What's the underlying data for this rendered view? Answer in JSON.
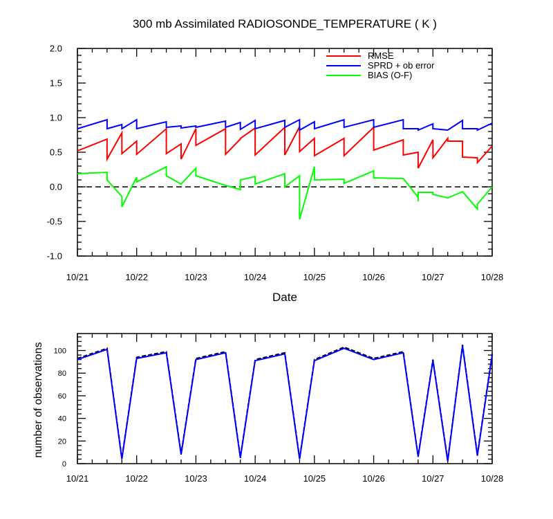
{
  "chart_data": [
    {
      "type": "line",
      "title": "300 mb Assimilated RADIOSONDE_TEMPERATURE ( K )",
      "xlabel": "Date",
      "ylabel": "",
      "x_tick_labels": [
        "10/21",
        "10/22",
        "10/23",
        "10/24",
        "10/25",
        "10/26",
        "10/27",
        "10/28"
      ],
      "xlim": [
        0,
        7
      ],
      "ylim": [
        -1.0,
        2.0
      ],
      "y_ticks": [
        -1.0,
        -0.5,
        0.0,
        0.5,
        1.0,
        1.5,
        2.0
      ],
      "y_tick_labels": [
        "-1.0",
        "-0.5",
        "0.0",
        "0.5",
        "1.0",
        "1.5",
        "2.0"
      ],
      "legend_position": "top-right",
      "zero_line": "dashed",
      "series": [
        {
          "name": "RMSE",
          "color": "#ff0000",
          "points": [
            [
              0.0,
              0.52
            ],
            [
              0.5,
              0.69
            ],
            [
              0.5,
              0.4
            ],
            [
              0.75,
              0.78
            ],
            [
              0.75,
              0.48
            ],
            [
              1.0,
              0.66
            ],
            [
              1.0,
              0.47
            ],
            [
              1.5,
              0.84
            ],
            [
              1.5,
              0.48
            ],
            [
              1.75,
              0.62
            ],
            [
              1.75,
              0.4
            ],
            [
              2.0,
              0.84
            ],
            [
              2.0,
              0.6
            ],
            [
              2.5,
              0.84
            ],
            [
              2.5,
              0.47
            ],
            [
              2.75,
              0.69
            ],
            [
              2.75,
              0.7
            ],
            [
              3.0,
              0.85
            ],
            [
              3.0,
              0.46
            ],
            [
              3.5,
              0.86
            ],
            [
              3.5,
              0.46
            ],
            [
              3.75,
              0.87
            ],
            [
              3.75,
              0.51
            ],
            [
              4.0,
              0.7
            ],
            [
              4.0,
              0.45
            ],
            [
              4.5,
              0.7
            ],
            [
              4.5,
              0.45
            ],
            [
              5.0,
              0.86
            ],
            [
              5.0,
              0.53
            ],
            [
              5.5,
              0.68
            ],
            [
              5.5,
              0.46
            ],
            [
              5.75,
              0.5
            ],
            [
              5.75,
              0.27
            ],
            [
              6.0,
              0.68
            ],
            [
              6.0,
              0.42
            ],
            [
              6.25,
              0.7
            ],
            [
              6.25,
              0.66
            ],
            [
              6.5,
              0.66
            ],
            [
              6.5,
              0.43
            ],
            [
              6.75,
              0.42
            ],
            [
              6.75,
              0.35
            ],
            [
              7.0,
              0.59
            ]
          ]
        },
        {
          "name": "SPRD + ob error",
          "color": "#0000ff",
          "points": [
            [
              0.0,
              0.84
            ],
            [
              0.5,
              0.97
            ],
            [
              0.5,
              0.84
            ],
            [
              0.75,
              0.9
            ],
            [
              0.75,
              0.84
            ],
            [
              1.0,
              0.97
            ],
            [
              1.0,
              0.84
            ],
            [
              1.5,
              0.94
            ],
            [
              1.5,
              0.86
            ],
            [
              1.75,
              0.88
            ],
            [
              1.75,
              0.85
            ],
            [
              2.0,
              0.88
            ],
            [
              2.0,
              0.86
            ],
            [
              2.5,
              0.95
            ],
            [
              2.5,
              0.86
            ],
            [
              2.75,
              0.93
            ],
            [
              2.75,
              0.83
            ],
            [
              3.0,
              0.96
            ],
            [
              3.0,
              0.84
            ],
            [
              3.5,
              0.96
            ],
            [
              3.5,
              0.86
            ],
            [
              3.75,
              0.97
            ],
            [
              3.75,
              0.82
            ],
            [
              4.0,
              0.94
            ],
            [
              4.0,
              0.84
            ],
            [
              4.5,
              0.97
            ],
            [
              4.5,
              0.86
            ],
            [
              5.0,
              0.97
            ],
            [
              5.0,
              0.86
            ],
            [
              5.5,
              0.97
            ],
            [
              5.5,
              0.84
            ],
            [
              5.75,
              0.84
            ],
            [
              5.75,
              0.82
            ],
            [
              6.0,
              0.91
            ],
            [
              6.0,
              0.84
            ],
            [
              6.25,
              0.82
            ],
            [
              6.5,
              0.96
            ],
            [
              6.5,
              0.84
            ],
            [
              6.75,
              0.84
            ],
            [
              6.75,
              0.82
            ],
            [
              7.0,
              0.92
            ]
          ]
        },
        {
          "name": "BIAS (O-F)",
          "color": "#00ff00",
          "points": [
            [
              0.0,
              0.19
            ],
            [
              0.5,
              0.21
            ],
            [
              0.5,
              0.1
            ],
            [
              0.75,
              -0.14
            ],
            [
              0.75,
              -0.2
            ],
            [
              0.75,
              -0.29
            ],
            [
              1.0,
              0.14
            ],
            [
              1.0,
              0.07
            ],
            [
              1.5,
              0.29
            ],
            [
              1.5,
              0.16
            ],
            [
              1.75,
              0.04
            ],
            [
              2.0,
              0.27
            ],
            [
              2.0,
              0.16
            ],
            [
              2.5,
              0.02
            ],
            [
              2.75,
              -0.04
            ],
            [
              2.75,
              0.1
            ],
            [
              3.0,
              0.15
            ],
            [
              3.0,
              0.04
            ],
            [
              3.5,
              0.19
            ],
            [
              3.5,
              0.0
            ],
            [
              3.75,
              0.16
            ],
            [
              3.75,
              -0.47
            ],
            [
              4.0,
              0.29
            ],
            [
              4.0,
              0.1
            ],
            [
              4.5,
              0.11
            ],
            [
              4.5,
              0.05
            ],
            [
              5.0,
              0.23
            ],
            [
              5.0,
              0.13
            ],
            [
              5.5,
              0.12
            ],
            [
              5.75,
              -0.15
            ],
            [
              5.75,
              -0.21
            ],
            [
              5.75,
              -0.08
            ],
            [
              6.0,
              -0.08
            ],
            [
              6.0,
              -0.11
            ],
            [
              6.25,
              -0.16
            ],
            [
              6.5,
              -0.07
            ],
            [
              6.75,
              -0.32
            ],
            [
              6.75,
              -0.25
            ],
            [
              7.0,
              0.0
            ]
          ]
        }
      ]
    },
    {
      "type": "line",
      "title": "",
      "xlabel": "",
      "ylabel": "number of observations",
      "x_tick_labels": [
        "10/21",
        "10/22",
        "10/23",
        "10/24",
        "10/25",
        "10/26",
        "10/27",
        "10/28"
      ],
      "xlim": [
        0,
        7
      ],
      "ylim": [
        0,
        115
      ],
      "y_ticks": [
        0,
        20,
        40,
        60,
        80,
        100
      ],
      "y_tick_labels": [
        "0",
        "20",
        "40",
        "60",
        "80",
        "100"
      ],
      "series": [
        {
          "name": "",
          "color": "#000000",
          "dash": true,
          "points": [
            [
              0.0,
              93
            ],
            [
              0.5,
              102
            ],
            [
              0.75,
              5
            ],
            [
              1.0,
              94
            ],
            [
              1.5,
              99
            ],
            [
              1.75,
              9
            ],
            [
              2.0,
              93
            ],
            [
              2.5,
              99
            ],
            [
              2.75,
              6
            ],
            [
              3.0,
              92
            ],
            [
              3.5,
              98
            ],
            [
              3.75,
              5
            ],
            [
              4.0,
              92
            ],
            [
              4.5,
              103
            ],
            [
              5.0,
              93
            ],
            [
              5.5,
              99
            ],
            [
              5.75,
              7
            ],
            [
              6.0,
              92
            ],
            [
              6.25,
              3
            ],
            [
              6.5,
              105
            ],
            [
              6.75,
              8
            ],
            [
              7.0,
              97
            ]
          ]
        },
        {
          "name": "",
          "color": "#0000ff",
          "dash": false,
          "points": [
            [
              0.0,
              92
            ],
            [
              0.5,
              101
            ],
            [
              0.75,
              4
            ],
            [
              1.0,
              93
            ],
            [
              1.5,
              98
            ],
            [
              1.75,
              8
            ],
            [
              2.0,
              92
            ],
            [
              2.5,
              98
            ],
            [
              2.75,
              5
            ],
            [
              3.0,
              91
            ],
            [
              3.5,
              97
            ],
            [
              3.75,
              4
            ],
            [
              4.0,
              91
            ],
            [
              4.5,
              102
            ],
            [
              5.0,
              92
            ],
            [
              5.5,
              98
            ],
            [
              5.75,
              6
            ],
            [
              6.0,
              91
            ],
            [
              6.25,
              2
            ],
            [
              6.5,
              104
            ],
            [
              6.75,
              7
            ],
            [
              7.0,
              96
            ]
          ]
        }
      ]
    }
  ]
}
